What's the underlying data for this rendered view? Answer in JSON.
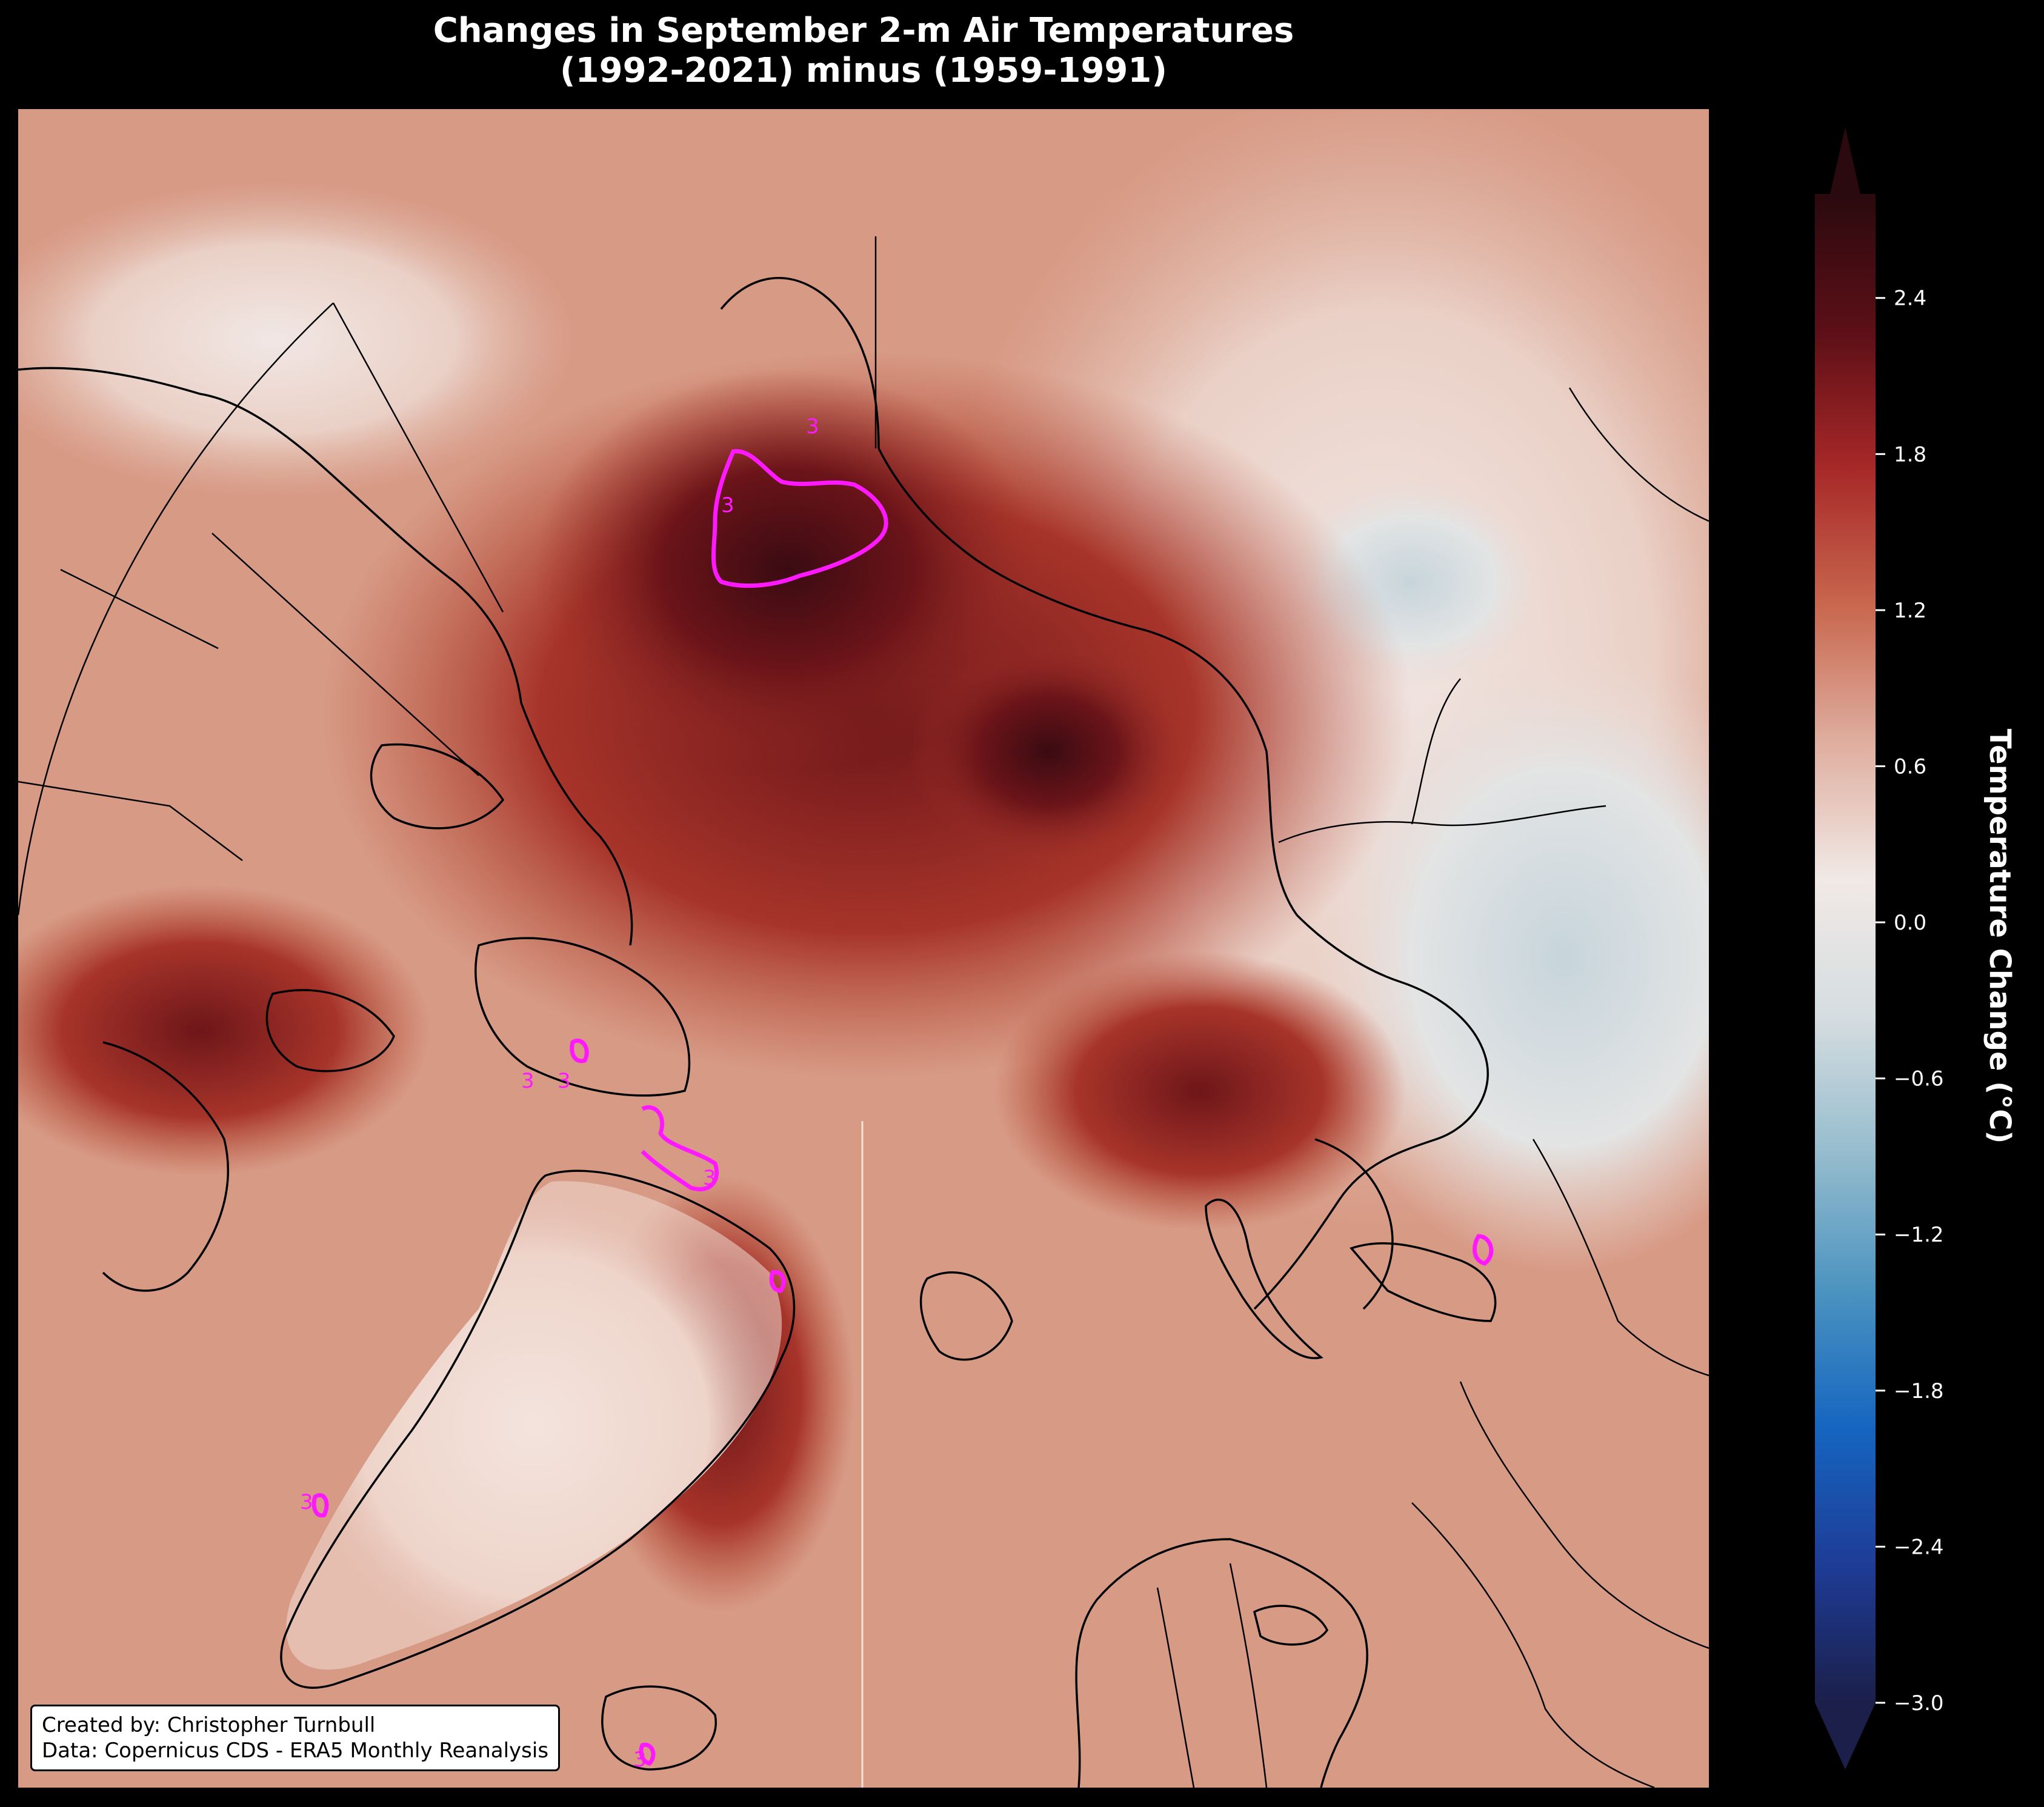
{
  "title": {
    "line1": "Changes in September 2-m Air Temperatures",
    "line2": "(1992-2021) minus (1959-1991)"
  },
  "credit": {
    "line1": "Created by: Christopher Turnbull",
    "line2": "Data: Copernicus CDS - ERA5 Monthly Reanalysis"
  },
  "contour": {
    "level_label": "3",
    "color": "#ff19ff"
  },
  "colorbar": {
    "label": "Temperature Change (°C)",
    "min": -3.0,
    "max": 2.8,
    "extend": "both",
    "ticks": [
      "2.4",
      "1.8",
      "1.2",
      "0.6",
      "0.0",
      "−0.6",
      "−1.2",
      "−1.8",
      "−2.4",
      "−3.0"
    ],
    "tick_values": [
      2.4,
      1.8,
      1.2,
      0.6,
      0.0,
      -0.6,
      -1.2,
      -1.8,
      -2.4,
      -3.0
    ],
    "colors": [
      "#1b1f4a",
      "#1e3c96",
      "#1565c0",
      "#4b93c0",
      "#95bccd",
      "#d5dde0",
      "#f1e9e6",
      "#dfae9f",
      "#c8674e",
      "#a72828",
      "#5c0f17",
      "#2a0a0e"
    ]
  }
}
